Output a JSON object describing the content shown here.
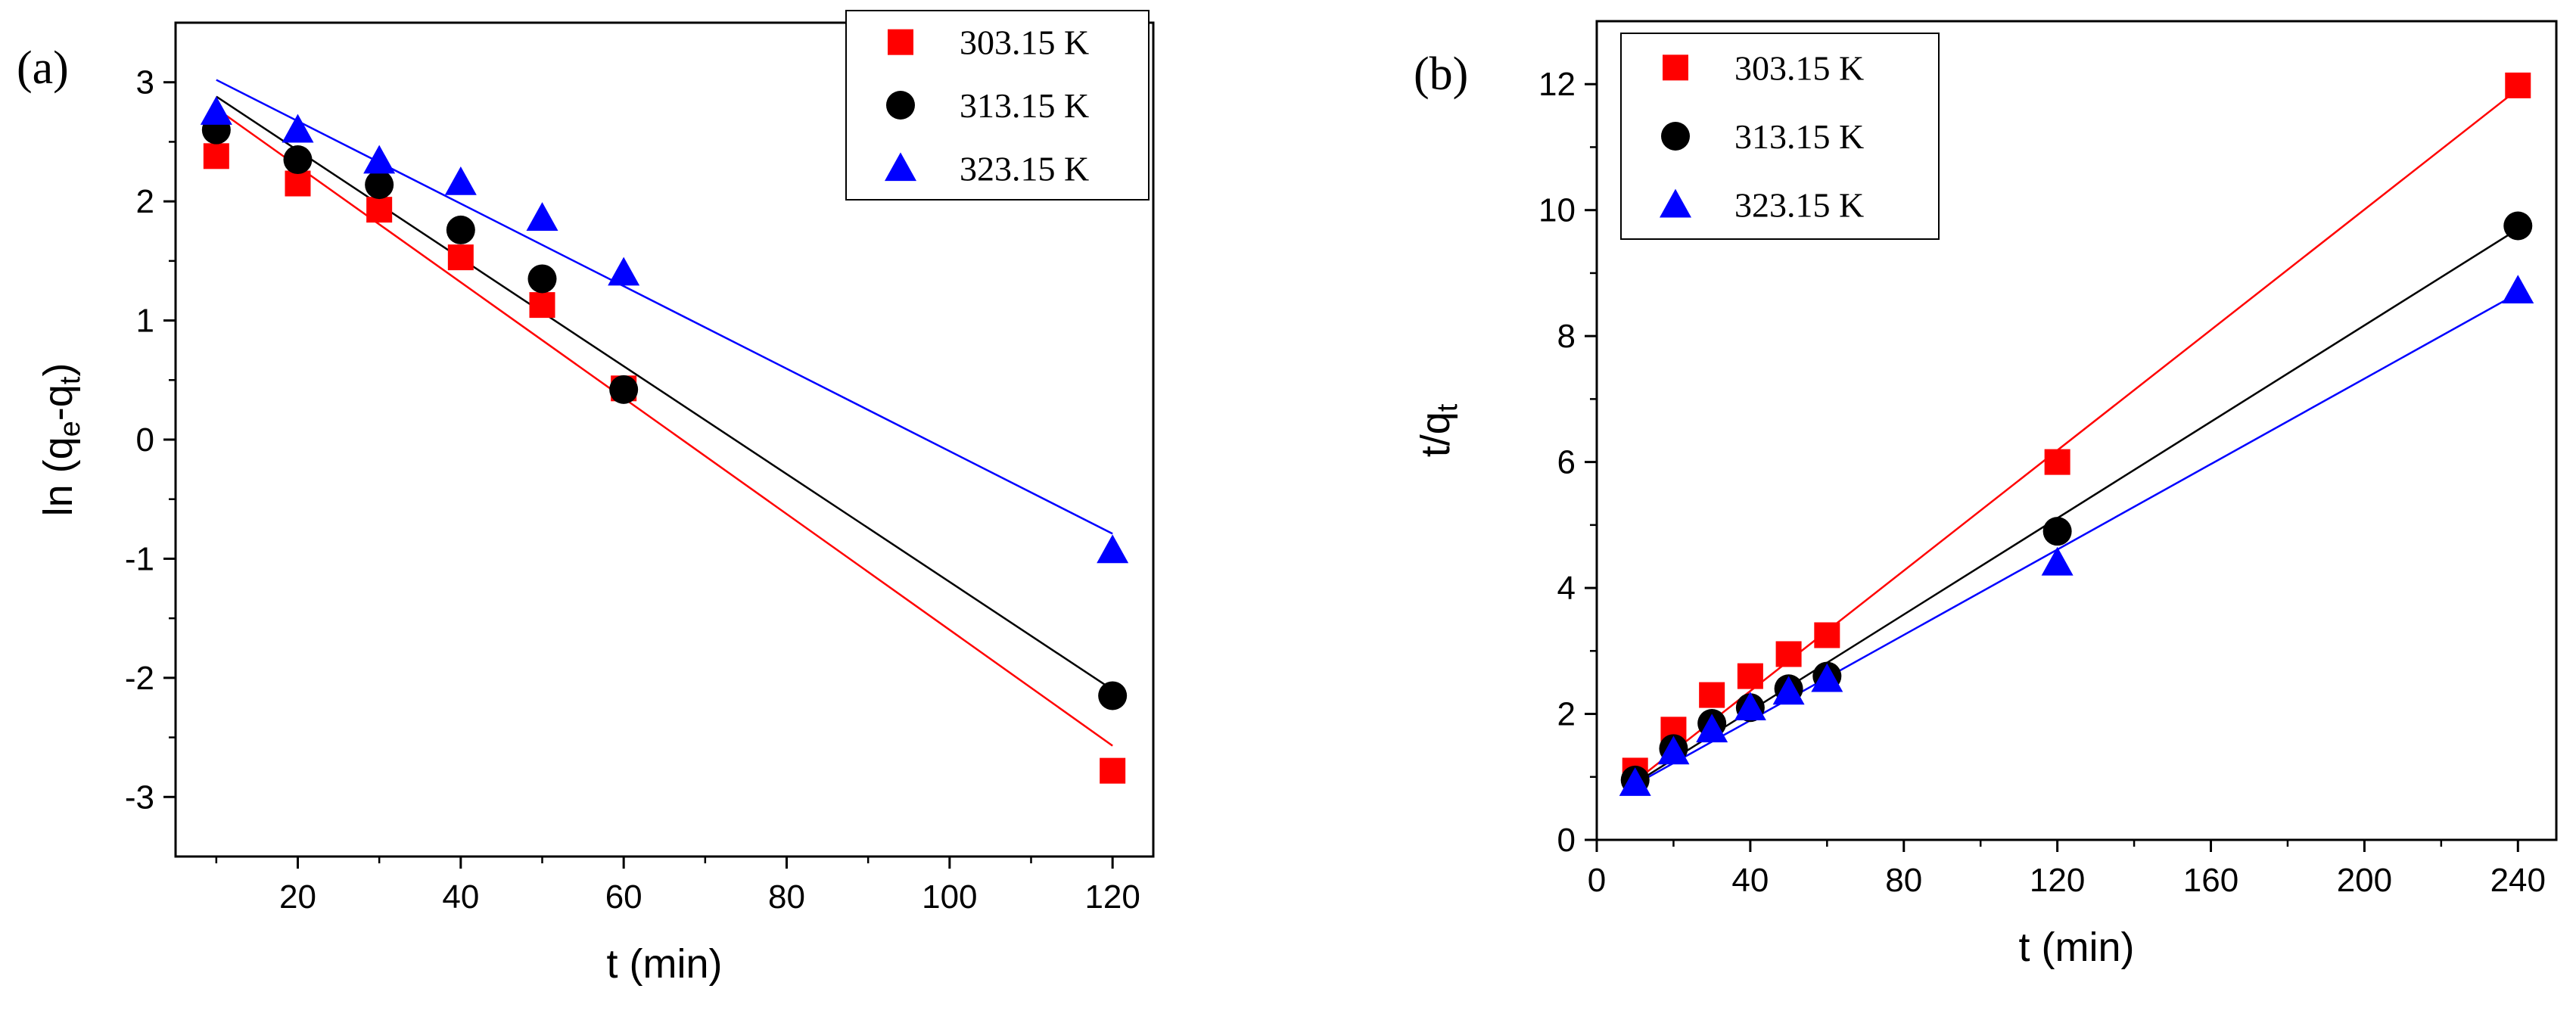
{
  "chart_data": [
    {
      "type": "scatter",
      "panel_label": "(a)",
      "title": "",
      "xlabel": "t (min)",
      "ylabel_parts": [
        "ln (q",
        "e",
        "-q",
        "t",
        ")"
      ],
      "xlim": [
        5,
        125
      ],
      "ylim": [
        -3.5,
        3.5
      ],
      "xticks": [
        20,
        40,
        60,
        80,
        100,
        120
      ],
      "yticks": [
        -3,
        -2,
        -1,
        0,
        1,
        2,
        3
      ],
      "legend_position": "top-right",
      "grid": false,
      "series": [
        {
          "name": "303.15 K",
          "color": "#ff0000",
          "marker": "square",
          "x": [
            10,
            20,
            30,
            40,
            50,
            60,
            120
          ],
          "y": [
            2.38,
            2.15,
            1.93,
            1.53,
            1.13,
            0.43,
            -2.78
          ],
          "fit": [
            [
              10,
              2.78
            ],
            [
              120,
              -2.57
            ]
          ]
        },
        {
          "name": "313.15 K",
          "color": "#000000",
          "marker": "circle",
          "x": [
            10,
            20,
            30,
            40,
            50,
            60,
            120
          ],
          "y": [
            2.6,
            2.35,
            2.14,
            1.76,
            1.35,
            0.42,
            -2.15
          ],
          "fit": [
            [
              10,
              2.88
            ],
            [
              120,
              -2.1
            ]
          ]
        },
        {
          "name": "323.15 K",
          "color": "#0000ff",
          "marker": "triangle",
          "x": [
            10,
            20,
            30,
            40,
            50,
            60,
            120
          ],
          "y": [
            2.75,
            2.6,
            2.34,
            2.16,
            1.86,
            1.4,
            -0.93
          ],
          "fit": [
            [
              10,
              3.02
            ],
            [
              120,
              -0.79
            ]
          ]
        }
      ]
    },
    {
      "type": "scatter",
      "panel_label": "(b)",
      "title": "",
      "xlabel": "t (min)",
      "ylabel_parts": [
        "t/q",
        "t"
      ],
      "xlim": [
        0,
        250
      ],
      "ylim": [
        0,
        13
      ],
      "xticks": [
        0,
        40,
        80,
        120,
        160,
        200,
        240
      ],
      "yticks": [
        0,
        2,
        4,
        6,
        8,
        10,
        12
      ],
      "legend_position": "top-left",
      "grid": false,
      "series": [
        {
          "name": "303.15 K",
          "color": "#ff0000",
          "marker": "square",
          "x": [
            10,
            20,
            30,
            40,
            50,
            60,
            120,
            240
          ],
          "y": [
            1.1,
            1.75,
            2.3,
            2.6,
            2.95,
            3.25,
            6.0,
            11.98
          ],
          "fit": [
            [
              10,
              0.93
            ],
            [
              240,
              11.92
            ]
          ]
        },
        {
          "name": "313.15 K",
          "color": "#000000",
          "marker": "circle",
          "x": [
            10,
            20,
            30,
            40,
            50,
            60,
            120,
            240
          ],
          "y": [
            0.95,
            1.45,
            1.85,
            2.1,
            2.4,
            2.6,
            4.9,
            9.75
          ],
          "fit": [
            [
              10,
              0.9
            ],
            [
              240,
              9.7
            ]
          ]
        },
        {
          "name": "323.15 K",
          "color": "#0000ff",
          "marker": "triangle",
          "x": [
            10,
            20,
            30,
            40,
            50,
            60,
            120,
            240
          ],
          "y": [
            0.9,
            1.4,
            1.75,
            2.1,
            2.35,
            2.55,
            4.4,
            8.72
          ],
          "fit": [
            [
              10,
              0.88
            ],
            [
              240,
              8.68
            ]
          ]
        }
      ]
    }
  ]
}
